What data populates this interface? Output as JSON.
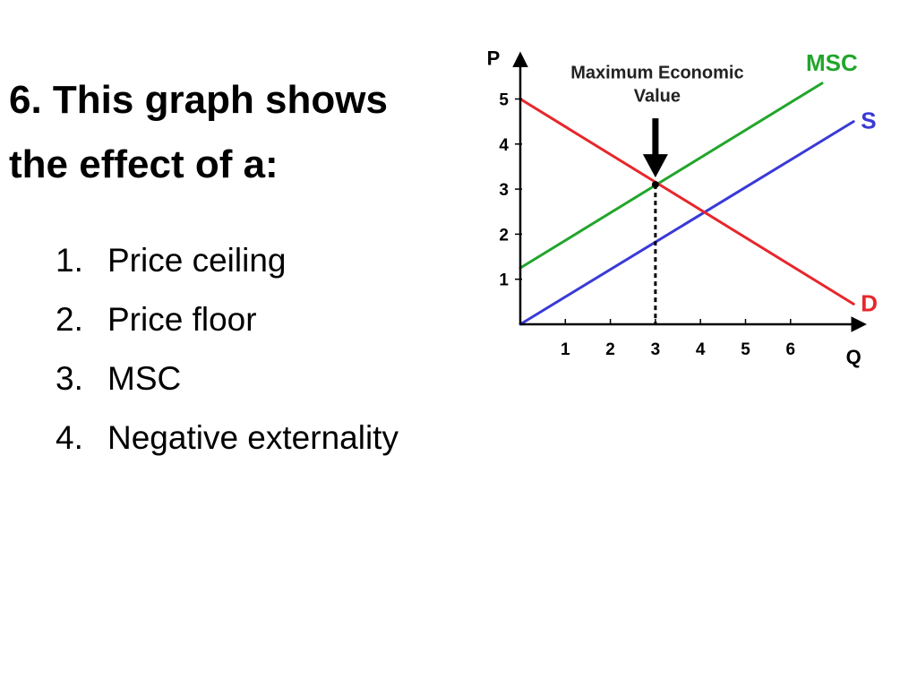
{
  "slide": {
    "title_lines": [
      "6. This graph shows",
      "the effect of a:"
    ],
    "options": [
      {
        "number": "1.",
        "label": "Price ceiling"
      },
      {
        "number": "2.",
        "label": "Price floor"
      },
      {
        "number": "3.",
        "label": "MSC"
      },
      {
        "number": "4.",
        "label": "Negative externality"
      }
    ]
  },
  "chart_data": {
    "type": "line",
    "title": "",
    "xlabel": "Q",
    "ylabel": "P",
    "xlim": [
      0,
      7.4
    ],
    "ylim": [
      0,
      5.8
    ],
    "x_ticks": [
      1,
      2,
      3,
      4,
      5,
      6
    ],
    "y_ticks": [
      1,
      2,
      3,
      4,
      5
    ],
    "grid": false,
    "series": [
      {
        "name": "MSC",
        "color": "#22a52b",
        "points": [
          [
            0,
            1.25
          ],
          [
            6.7,
            5.35
          ]
        ]
      },
      {
        "name": "S",
        "color": "#3a3ad8",
        "points": [
          [
            0,
            0
          ],
          [
            7.4,
            4.5
          ]
        ]
      },
      {
        "name": "D",
        "color": "#e8262a",
        "points": [
          [
            0,
            5.0
          ],
          [
            7.4,
            0.45
          ]
        ]
      }
    ],
    "annotations": [
      {
        "text": [
          "Maximum Economic",
          "Value"
        ],
        "x": 3.0,
        "y": 3.1,
        "marker": "arrow-down",
        "dashed_drop_line": true
      }
    ]
  }
}
